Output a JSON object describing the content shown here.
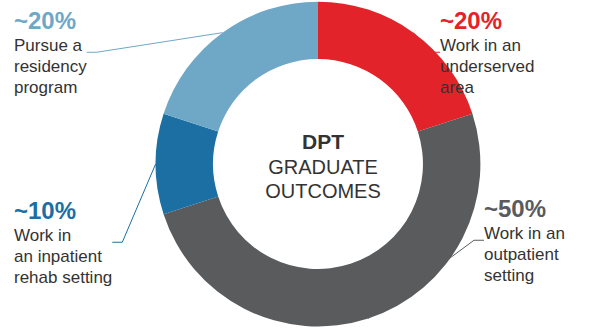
{
  "chart_data": {
    "type": "donut",
    "title": "DPT",
    "subtitle": "GRADUATE\nOUTCOMES",
    "categories": [
      "Work in an\nunderserved\narea",
      "Work in an\noutpatient\nsetting",
      "Work in\nan inpatient\nrehab setting",
      "Pursue a\nresidency\nprogram"
    ],
    "values": [
      20,
      50,
      10,
      20
    ],
    "value_labels": [
      "~20%",
      "~50%",
      "~10%",
      "~20%"
    ],
    "colors": [
      "#e2232a",
      "#5a5b5d",
      "#1b6fa3",
      "#6fa8c7"
    ],
    "data_labels": true
  }
}
